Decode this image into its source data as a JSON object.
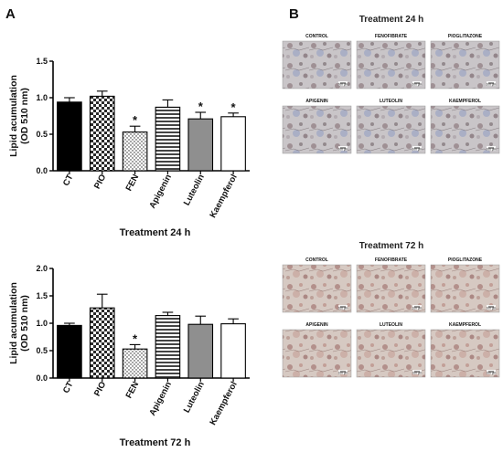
{
  "panel_a": {
    "letter": "A"
  },
  "panel_b": {
    "letter": "B",
    "groups": [
      {
        "title": "Treatment 24 h",
        "tint": "blue",
        "labels": [
          "CONTROL",
          "FENOFIBRATE",
          "PIOGLITAZONE",
          "APIGENIN",
          "LUTEOLIN",
          "KAEMPFEROL"
        ]
      },
      {
        "title": "Treatment 72 h",
        "tint": "red",
        "labels": [
          "CONTROL",
          "FENOFIBRATE",
          "PIOGLITAZONE",
          "APIGENIN",
          "LUTEOLIN",
          "KAEMPFEROL"
        ]
      }
    ],
    "scale_bar_text": "100 µm"
  },
  "chart_data": [
    {
      "type": "bar",
      "title": "Treatment 24 h",
      "ylabel_line1": "Lipid acumulation",
      "ylabel_line2": "(OD 510 nm)",
      "categories": [
        "CT",
        "PIO",
        "FEN",
        "Apigenin",
        "Luteolin",
        "Kaempferol"
      ],
      "values": [
        0.94,
        1.02,
        0.53,
        0.87,
        0.71,
        0.74
      ],
      "errors": [
        0.06,
        0.07,
        0.08,
        0.1,
        0.09,
        0.05
      ],
      "significant": [
        false,
        false,
        true,
        false,
        true,
        true
      ],
      "significance_mark": "*",
      "ylim": [
        0,
        1.5
      ],
      "yticks": [
        "0.0",
        "0.5",
        "1.0",
        "1.5"
      ],
      "patterns": [
        "solid-black",
        "checker",
        "dots",
        "hstripes",
        "solid-gray",
        "white"
      ]
    },
    {
      "type": "bar",
      "title": "Treatment 72 h",
      "ylabel_line1": "Lipid acumulation",
      "ylabel_line2": "(OD 510 nm)",
      "categories": [
        "CT",
        "PIO",
        "FEN",
        "Apigenin",
        "Luteolin",
        "Kaempferol"
      ],
      "values": [
        0.96,
        1.28,
        0.53,
        1.14,
        0.98,
        0.99
      ],
      "errors": [
        0.04,
        0.25,
        0.08,
        0.06,
        0.15,
        0.09
      ],
      "significant": [
        false,
        false,
        true,
        false,
        false,
        false
      ],
      "significance_mark": "*",
      "ylim": [
        0,
        2.0
      ],
      "yticks": [
        "0.0",
        "0.5",
        "1.0",
        "1.5",
        "2.0"
      ],
      "patterns": [
        "solid-black",
        "checker",
        "dots",
        "hstripes",
        "solid-gray",
        "white"
      ]
    }
  ]
}
